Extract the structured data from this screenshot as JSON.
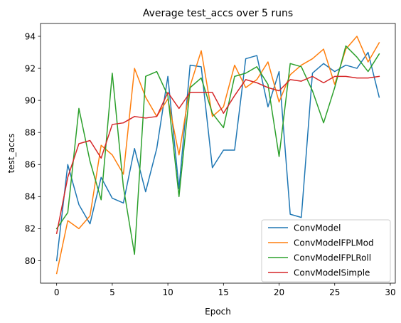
{
  "chart_data": {
    "type": "line",
    "title": "Average test_accs over 5 runs",
    "xlabel": "Epoch",
    "ylabel": "test_accs",
    "xlim": [
      -1.45,
      30.45
    ],
    "ylim": [
      78.6,
      94.8
    ],
    "xticks": [
      0,
      5,
      10,
      15,
      20,
      25,
      30
    ],
    "yticks": [
      80,
      82,
      84,
      86,
      88,
      90,
      92,
      94
    ],
    "grid": false,
    "legend_position": "lower right",
    "x": [
      0,
      1,
      2,
      3,
      4,
      5,
      6,
      7,
      8,
      9,
      10,
      11,
      12,
      13,
      14,
      15,
      16,
      17,
      18,
      19,
      20,
      21,
      22,
      23,
      24,
      25,
      26,
      27,
      28,
      29
    ],
    "series": [
      {
        "name": "ConvModel",
        "color": "#1f77b4",
        "values": [
          80.0,
          86.0,
          83.5,
          82.3,
          85.2,
          83.9,
          83.6,
          87.0,
          84.3,
          87.0,
          91.5,
          84.5,
          92.2,
          92.1,
          85.8,
          86.9,
          86.9,
          92.6,
          92.8,
          89.6,
          91.8,
          82.9,
          82.7,
          91.7,
          92.3,
          91.8,
          92.2,
          92.0,
          93.0,
          90.2
        ]
      },
      {
        "name": "ConvModelFPLMod",
        "color": "#ff7f0e",
        "values": [
          79.2,
          82.5,
          82.0,
          82.8,
          87.2,
          86.6,
          85.4,
          92.0,
          90.2,
          89.0,
          90.1,
          86.6,
          90.9,
          93.1,
          89.0,
          89.6,
          92.2,
          90.8,
          91.3,
          92.4,
          89.9,
          91.6,
          92.2,
          92.6,
          93.2,
          91.0,
          93.2,
          94.0,
          92.4,
          93.6
        ]
      },
      {
        "name": "ConvModelFPLRoll",
        "color": "#2ca02c",
        "values": [
          82.0,
          83.0,
          89.5,
          86.2,
          83.8,
          91.7,
          84.6,
          80.4,
          91.5,
          91.8,
          90.3,
          84.0,
          90.8,
          91.4,
          89.2,
          88.3,
          91.5,
          91.7,
          92.1,
          91.0,
          86.5,
          92.3,
          92.1,
          90.6,
          88.6,
          90.8,
          93.4,
          92.7,
          91.8,
          92.9
        ]
      },
      {
        "name": "ConvModelSimple",
        "color": "#d62728",
        "values": [
          81.7,
          85.2,
          87.3,
          87.5,
          86.4,
          88.5,
          88.6,
          89.0,
          88.9,
          89.0,
          90.5,
          89.5,
          90.5,
          90.5,
          90.5,
          89.2,
          90.3,
          91.3,
          91.1,
          90.8,
          90.6,
          91.3,
          91.2,
          91.5,
          91.1,
          91.5,
          91.5,
          91.4,
          91.4,
          91.5
        ]
      }
    ]
  }
}
